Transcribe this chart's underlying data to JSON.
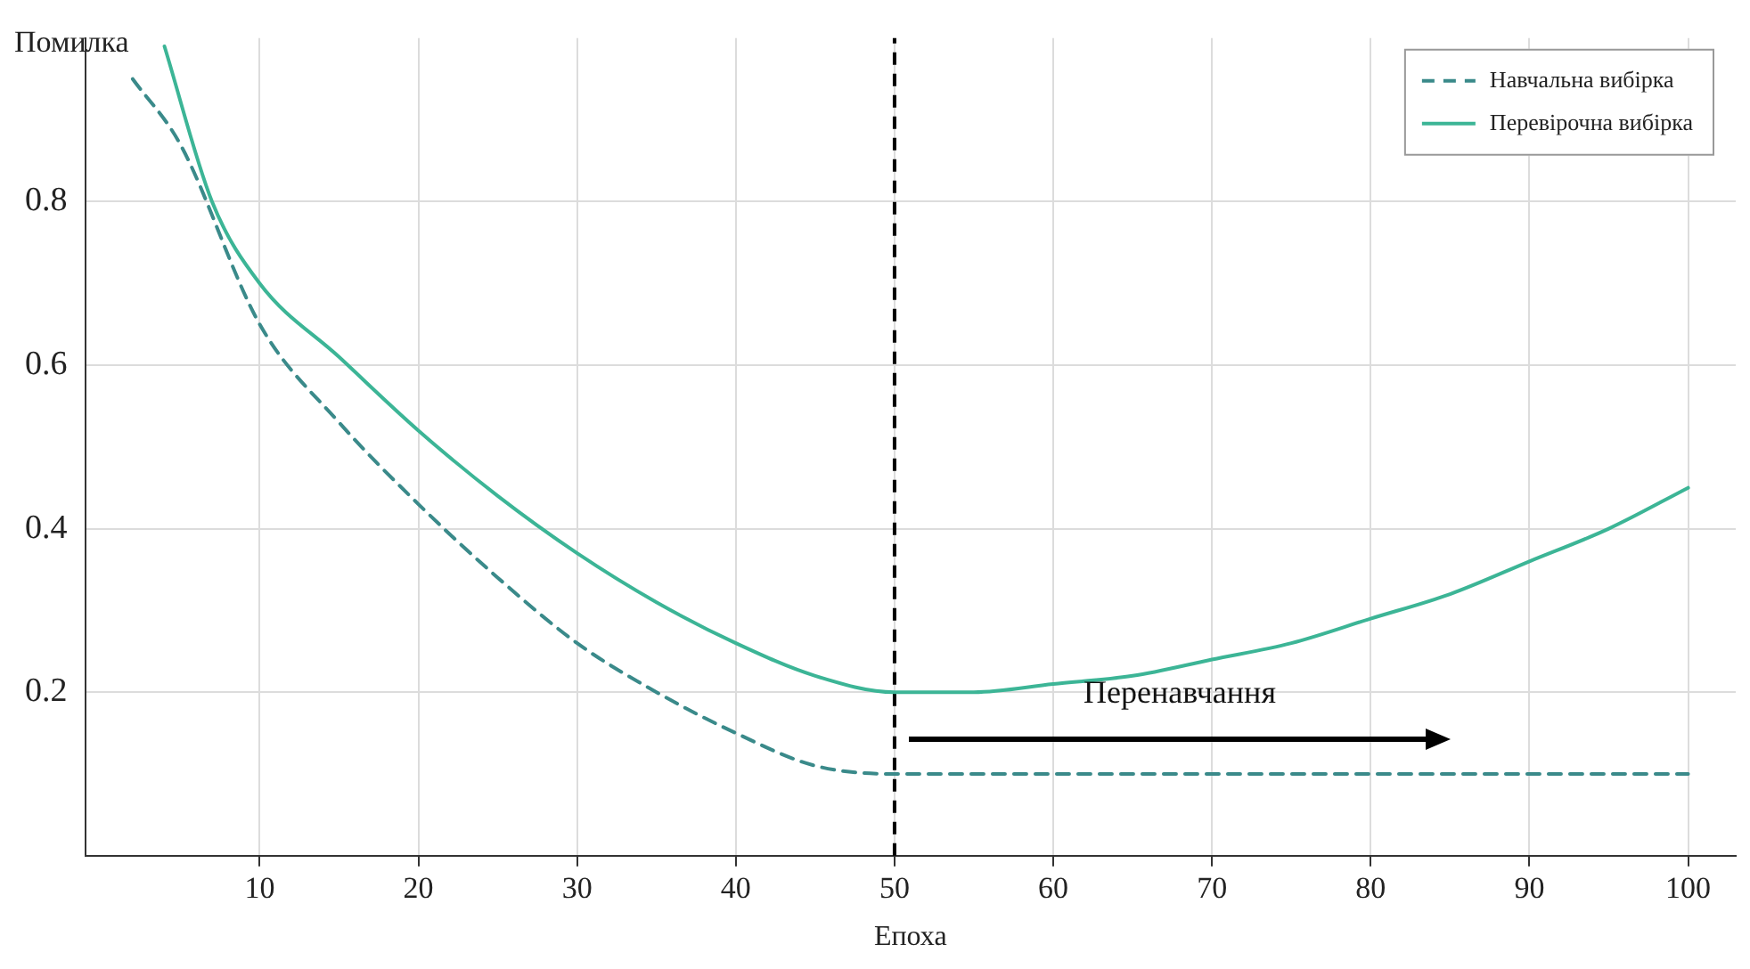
{
  "chart_data": {
    "type": "line",
    "xlabel": "Епоха",
    "ylabel": "Помилка",
    "xlim": [
      -1,
      103
    ],
    "xticks": [
      10,
      20,
      30,
      40,
      50,
      60,
      70,
      80,
      90,
      100
    ],
    "ylim": [
      0,
      1
    ],
    "yticks": [
      0.2,
      0.4,
      0.6,
      0.8
    ],
    "grid": true,
    "legend": "top right",
    "marker": "none",
    "series": [
      {
        "name": "Навчальна вибірка",
        "color": "#3a8a8a",
        "line_style": "dashed",
        "x": [
          2,
          5,
          10,
          15,
          20,
          25,
          30,
          35,
          40,
          45,
          50,
          55,
          60,
          65,
          70,
          75,
          80,
          85,
          90,
          95,
          100
        ],
        "values": [
          0.95,
          0.87,
          0.65,
          0.53,
          0.43,
          0.34,
          0.26,
          0.2,
          0.15,
          0.11,
          0.1,
          0.1,
          0.1,
          0.1,
          0.1,
          0.1,
          0.1,
          0.1,
          0.1,
          0.1,
          0.1
        ]
      },
      {
        "name": "Перевірочна вибірка",
        "color": "#3cb596",
        "line_style": "solid",
        "x": [
          4,
          7,
          10,
          15,
          20,
          25,
          30,
          35,
          40,
          45,
          50,
          55,
          60,
          65,
          70,
          75,
          80,
          85,
          90,
          95,
          100
        ],
        "values": [
          0.99,
          0.8,
          0.7,
          0.61,
          0.52,
          0.44,
          0.37,
          0.31,
          0.26,
          0.22,
          0.2,
          0.2,
          0.21,
          0.22,
          0.24,
          0.26,
          0.29,
          0.32,
          0.36,
          0.4,
          0.45
        ]
      }
    ],
    "ref_lines": [
      {
        "axis": "x",
        "value": 50,
        "color": "#000000",
        "line_style": "dashed"
      }
    ],
    "annotations": [
      "Перенавчання"
    ]
  }
}
